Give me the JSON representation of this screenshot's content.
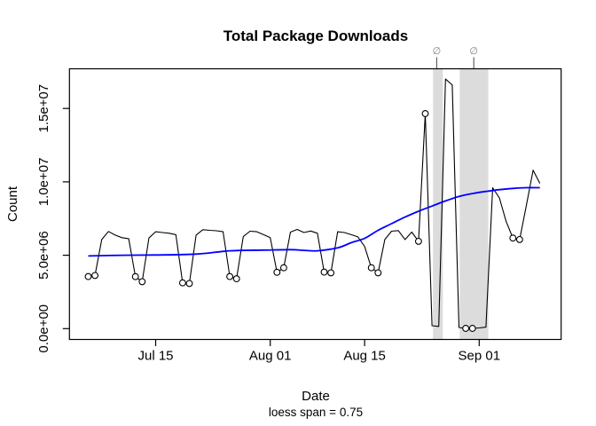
{
  "chart_data": {
    "type": "line",
    "title": "Total Package Downloads",
    "xlabel": "Date",
    "sublabel": "loess span = 0.75",
    "ylabel": "Count",
    "grid": false,
    "legend": "none",
    "ylim_millions": [
      0,
      17.5
    ],
    "y_ticks": [
      {
        "label": "0.0e+00",
        "millions": 0
      },
      {
        "label": "5.0e+06",
        "millions": 5
      },
      {
        "label": "1.0e+07",
        "millions": 10
      },
      {
        "label": "1.5e+07",
        "millions": 15
      }
    ],
    "x_ticks": [
      {
        "label": "Jul 15",
        "day": 10
      },
      {
        "label": "Aug 01",
        "day": 27
      },
      {
        "label": "Aug 15",
        "day": 41
      },
      {
        "label": "Sep 01",
        "day": 58
      }
    ],
    "point_schema": [
      "date",
      "downloads_millions",
      "weekend_marker"
    ],
    "daily_downloads": [
      [
        "Jul 05",
        3.55,
        true
      ],
      [
        "Jul 06",
        3.62,
        true
      ],
      [
        "Jul 07",
        6.07,
        false
      ],
      [
        "Jul 08",
        6.62,
        false
      ],
      [
        "Jul 09",
        6.37,
        false
      ],
      [
        "Jul 10",
        6.2,
        false
      ],
      [
        "Jul 11",
        6.13,
        false
      ],
      [
        "Jul 12",
        3.54,
        true
      ],
      [
        "Jul 13",
        3.2,
        true
      ],
      [
        "Jul 14",
        6.17,
        false
      ],
      [
        "Jul 15",
        6.6,
        false
      ],
      [
        "Jul 16",
        6.55,
        false
      ],
      [
        "Jul 17",
        6.5,
        false
      ],
      [
        "Jul 18",
        6.4,
        false
      ],
      [
        "Jul 19",
        3.12,
        true
      ],
      [
        "Jul 20",
        3.08,
        true
      ],
      [
        "Jul 21",
        6.37,
        false
      ],
      [
        "Jul 22",
        6.74,
        false
      ],
      [
        "Jul 23",
        6.7,
        false
      ],
      [
        "Jul 24",
        6.67,
        false
      ],
      [
        "Jul 25",
        6.6,
        false
      ],
      [
        "Jul 26",
        3.55,
        true
      ],
      [
        "Jul 27",
        3.4,
        true
      ],
      [
        "Jul 28",
        6.27,
        false
      ],
      [
        "Jul 29",
        6.64,
        false
      ],
      [
        "Jul 30",
        6.6,
        false
      ],
      [
        "Jul 31",
        6.4,
        false
      ],
      [
        "Aug 01",
        6.2,
        false
      ],
      [
        "Aug 02",
        3.84,
        true
      ],
      [
        "Aug 03",
        4.15,
        true
      ],
      [
        "Aug 04",
        6.58,
        false
      ],
      [
        "Aug 05",
        6.76,
        false
      ],
      [
        "Aug 06",
        6.55,
        false
      ],
      [
        "Aug 07",
        6.65,
        false
      ],
      [
        "Aug 08",
        6.5,
        false
      ],
      [
        "Aug 09",
        3.85,
        true
      ],
      [
        "Aug 10",
        3.8,
        true
      ],
      [
        "Aug 11",
        6.6,
        false
      ],
      [
        "Aug 12",
        6.55,
        false
      ],
      [
        "Aug 13",
        6.4,
        false
      ],
      [
        "Aug 14",
        6.25,
        false
      ],
      [
        "Aug 15",
        5.6,
        false
      ],
      [
        "Aug 16",
        4.15,
        true
      ],
      [
        "Aug 17",
        3.8,
        true
      ],
      [
        "Aug 18",
        6.07,
        false
      ],
      [
        "Aug 19",
        6.64,
        false
      ],
      [
        "Aug 20",
        6.68,
        false
      ],
      [
        "Aug 21",
        6.07,
        false
      ],
      [
        "Aug 22",
        6.58,
        false
      ],
      [
        "Aug 23",
        5.95,
        true
      ],
      [
        "Aug 24",
        14.65,
        true
      ],
      [
        "Aug 25",
        0.2,
        false
      ],
      [
        "Aug 26",
        0.15,
        false
      ],
      [
        "Aug 27",
        17.0,
        false
      ],
      [
        "Aug 28",
        16.6,
        false
      ],
      [
        "Aug 29",
        0.08,
        false
      ],
      [
        "Aug 30",
        0.02,
        true
      ],
      [
        "Aug 31",
        0.02,
        true
      ],
      [
        "Sep 01",
        0.05,
        false
      ],
      [
        "Sep 02",
        0.1,
        false
      ],
      [
        "Sep 03",
        9.6,
        false
      ],
      [
        "Sep 04",
        8.9,
        false
      ],
      [
        "Sep 05",
        7.3,
        false
      ],
      [
        "Sep 06",
        6.17,
        true
      ],
      [
        "Sep 07",
        6.07,
        true
      ],
      [
        "Sep 08",
        8.4,
        false
      ],
      [
        "Sep 09",
        10.8,
        false
      ],
      [
        "Sep 10",
        9.9,
        false
      ]
    ],
    "loess_series": {
      "name": "loess smooth",
      "points_day_millions": [
        [
          0,
          4.95
        ],
        [
          5,
          5.0
        ],
        [
          10,
          5.02
        ],
        [
          16,
          5.08
        ],
        [
          21,
          5.3
        ],
        [
          26,
          5.35
        ],
        [
          30,
          5.38
        ],
        [
          32,
          5.33
        ],
        [
          34,
          5.3
        ],
        [
          37,
          5.5
        ],
        [
          39,
          5.85
        ],
        [
          41,
          6.15
        ],
        [
          43,
          6.7
        ],
        [
          45,
          7.15
        ],
        [
          47,
          7.6
        ],
        [
          49,
          8.0
        ],
        [
          51,
          8.35
        ],
        [
          53,
          8.7
        ],
        [
          55,
          9.0
        ],
        [
          57,
          9.2
        ],
        [
          59,
          9.35
        ],
        [
          61,
          9.47
        ],
        [
          63,
          9.55
        ],
        [
          65,
          9.6
        ],
        [
          67,
          9.6
        ]
      ]
    },
    "missing_data_bands": [
      {
        "from_day": 51.15,
        "to_day": 52.6,
        "symbol": "∅",
        "symbol_day": 51.7
      },
      {
        "from_day": 55.1,
        "to_day": 59.35,
        "symbol": "∅",
        "symbol_day": 57.2
      }
    ],
    "colors": {
      "series_line": "#000000",
      "loess_line": "#0000ff",
      "band_fill": "#dcdcdc",
      "null_symbol": "#808080",
      "axis": "#000000",
      "background": "#ffffff"
    }
  }
}
